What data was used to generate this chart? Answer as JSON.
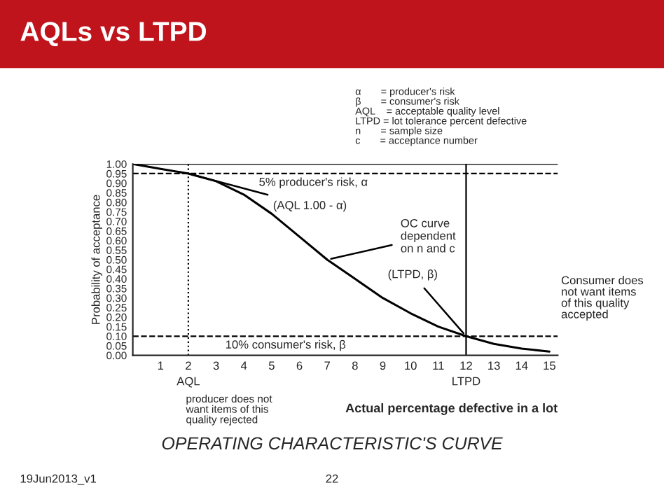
{
  "chart_data": {
    "type": "line",
    "title": "AQLs vs LTPD",
    "xlabel": "Actual percentage defective in a lot",
    "ylabel": "Probability of acceptance",
    "x": [
      0,
      1,
      2,
      3,
      4,
      5,
      6,
      7,
      8,
      9,
      10,
      11,
      12,
      13,
      14,
      15
    ],
    "series": [
      {
        "color": "#000000",
        "values": [
          1.0,
          0.975,
          0.95,
          0.91,
          0.84,
          0.74,
          0.62,
          0.5,
          0.4,
          0.3,
          0.22,
          0.15,
          0.1,
          0.06,
          0.035,
          0.02
        ]
      }
    ],
    "xlim": [
      0,
      15.3
    ],
    "xticks": [
      1,
      2,
      3,
      4,
      5,
      6,
      7,
      8,
      9,
      10,
      11,
      12,
      13,
      14,
      15
    ],
    "ylim": [
      0,
      1
    ],
    "yticks": [
      {
        "value": 0,
        "label": "0.00"
      },
      {
        "value": 0.05,
        "label": "0.05"
      },
      {
        "value": 0.1,
        "label": "0.10"
      },
      {
        "value": 0.15,
        "label": "0.15"
      },
      {
        "value": 0.2,
        "label": "0.20"
      },
      {
        "value": 0.25,
        "label": "0.25"
      },
      {
        "value": 0.3,
        "label": "0.30"
      },
      {
        "value": 0.35,
        "label": "0.35"
      },
      {
        "value": 0.4,
        "label": "0.40"
      },
      {
        "value": 0.45,
        "label": "0.45"
      },
      {
        "value": 0.5,
        "label": "0.50"
      },
      {
        "value": 0.55,
        "label": "0.55"
      },
      {
        "value": 0.6,
        "label": "0.60"
      },
      {
        "value": 0.65,
        "label": "0.65"
      },
      {
        "value": 0.7,
        "label": "0.70"
      },
      {
        "value": 0.75,
        "label": "0.75"
      },
      {
        "value": 0.8,
        "label": "0.80"
      },
      {
        "value": 0.85,
        "label": "0.85"
      },
      {
        "value": 0.9,
        "label": "0.90"
      },
      {
        "value": 0.95,
        "label": "0.95"
      },
      {
        "value": 1,
        "label": "1.00"
      }
    ],
    "grid": false,
    "marker": "none",
    "line_style": "solid",
    "ref_lines": [
      {
        "axis": "y",
        "value": 1,
        "line_style": "solid"
      },
      {
        "axis": "y",
        "value": 0.95,
        "label": "5% producer's risk, α",
        "line_style": "dashed"
      },
      {
        "axis": "y",
        "value": 0.1,
        "label": "10% consumer's risk, β",
        "line_style": "dashed"
      },
      {
        "axis": "x",
        "value": 2,
        "label": "AQL",
        "line_style": "dotted"
      },
      {
        "axis": "x",
        "value": 12,
        "label": "LTPD",
        "line_style": "solid"
      }
    ],
    "annotations": [
      {
        "text": "(AQL 1.00 - α)",
        "x": 2,
        "y": 0.95
      },
      {
        "text": "OC curve\ndependent\non n and c",
        "x": 7,
        "y": 0.5
      },
      {
        "text": "(LTPD, β)",
        "x": 12,
        "y": 0.1
      },
      "Consumer does\nnot want items\nof this quality\naccepted",
      "producer does not\nwant items of this\nquality rejected",
      "α       = producer's risk\nβ       = consumer's risk\nAQL    = acceptable quality level\nLTPD = lot tolerance percent defective\nn       = sample size\nc       = acceptance number",
      "OPERATING CHARACTERISTIC'S CURVE",
      "19Jun2013_v1",
      "22"
    ]
  }
}
